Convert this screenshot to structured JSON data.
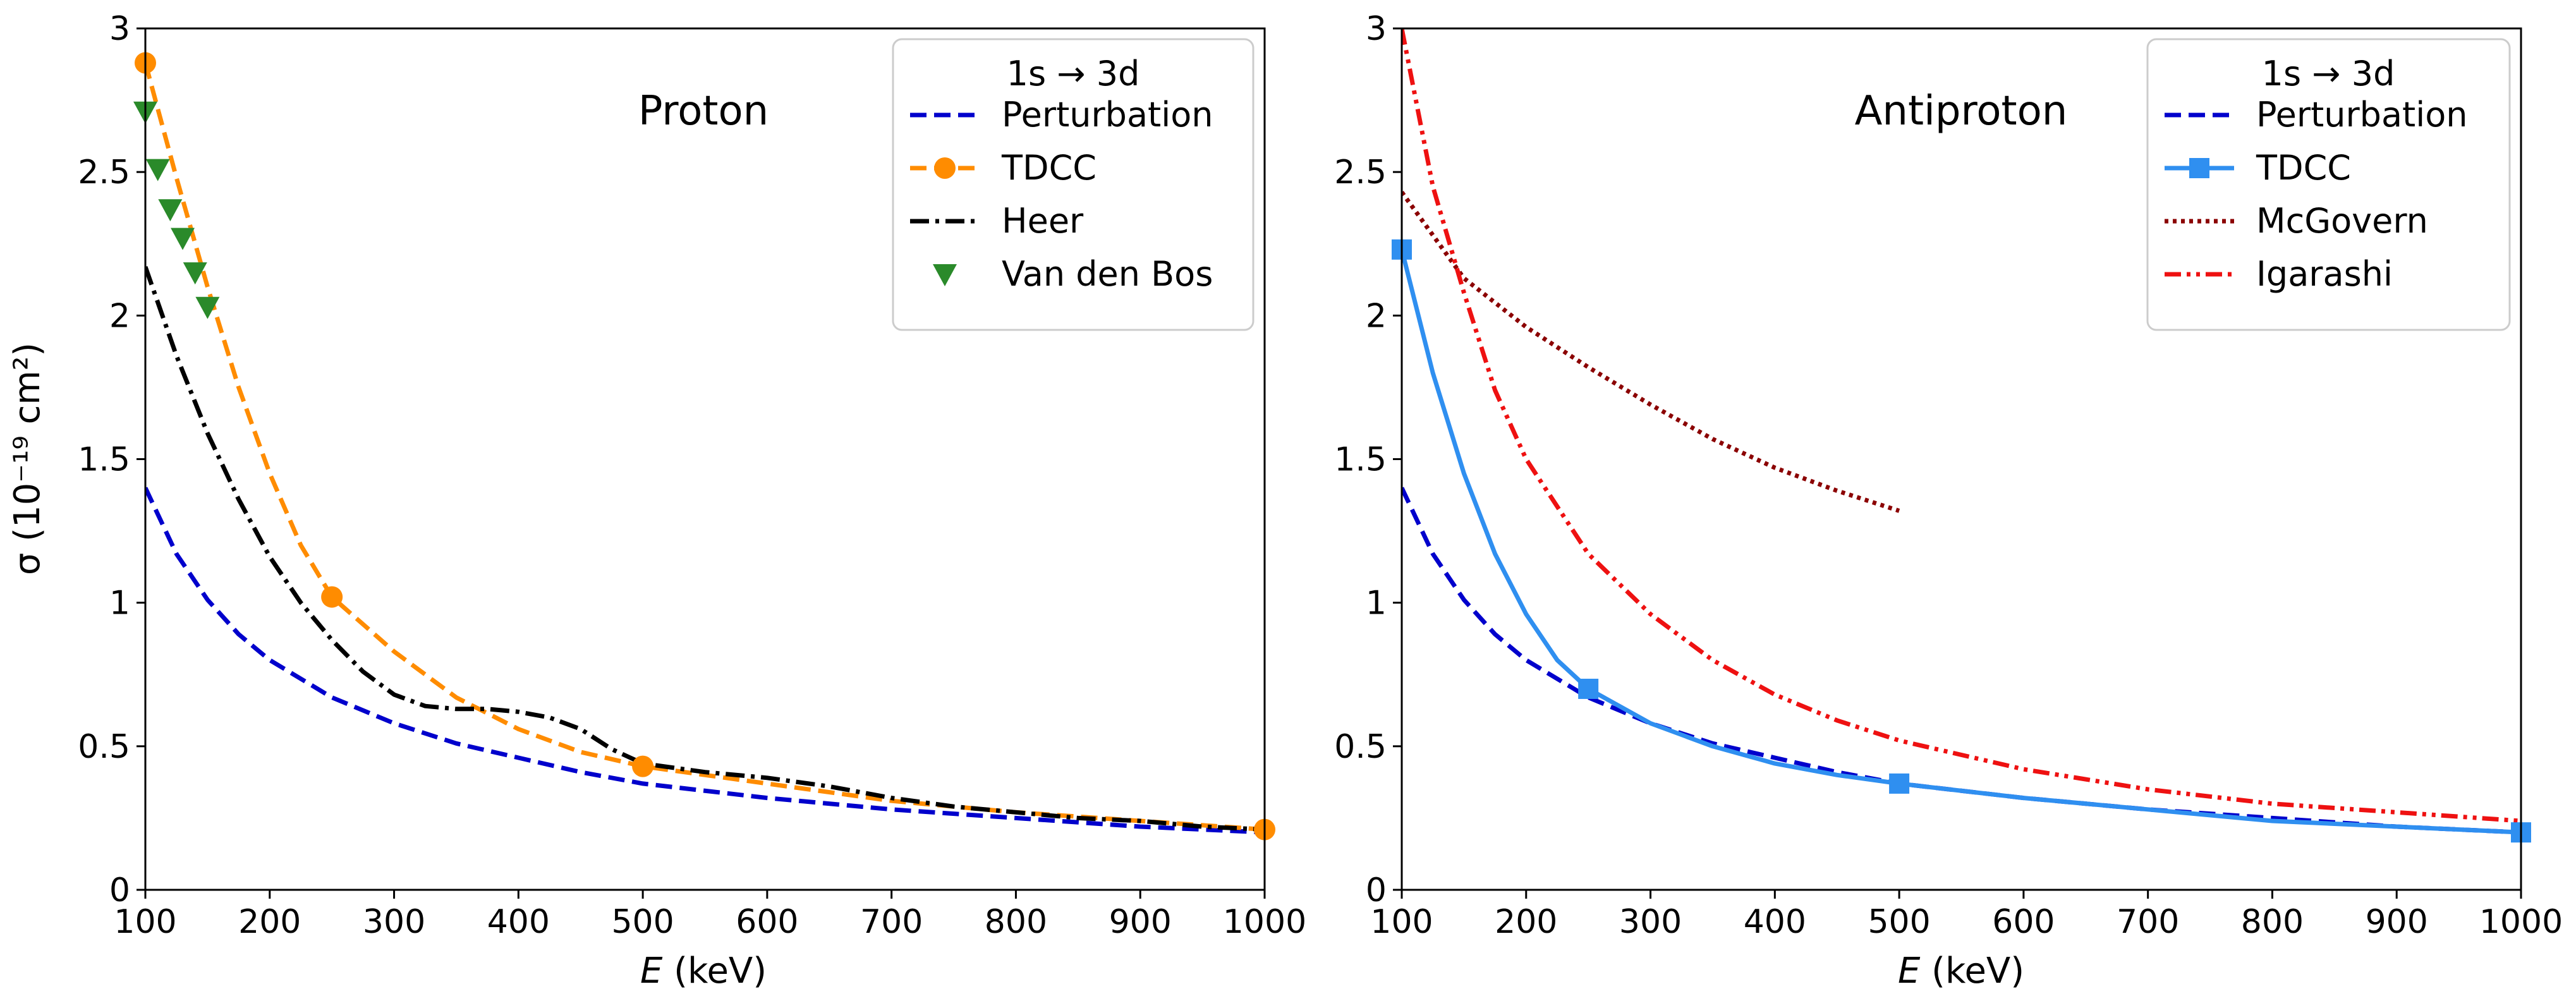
{
  "chart_data": [
    {
      "type": "line",
      "title": "Proton",
      "xlabel_symbol": "E",
      "xlabel_unit": "(keV)",
      "ylabel": "σ (10⁻¹⁹ cm²)",
      "xlim": [
        100,
        1000
      ],
      "ylim": [
        0,
        3
      ],
      "xticks": [
        100,
        200,
        300,
        400,
        500,
        600,
        700,
        800,
        900,
        1000
      ],
      "yticks": [
        0,
        0.5,
        1,
        1.5,
        2,
        2.5,
        3
      ],
      "ytick_labels": [
        "0",
        "0.5",
        "1",
        "1.5",
        "2",
        "2.5",
        "3"
      ],
      "legend_title": "1s → 3d",
      "legend_location": "top-right",
      "series": [
        {
          "name": "Perturbation",
          "color": "#0000cc",
          "dash": "dashed",
          "x": [
            100,
            125,
            150,
            175,
            200,
            250,
            300,
            350,
            400,
            450,
            500,
            600,
            700,
            800,
            900,
            1000
          ],
          "y": [
            1.4,
            1.17,
            1.01,
            0.89,
            0.8,
            0.67,
            0.58,
            0.51,
            0.46,
            0.41,
            0.37,
            0.32,
            0.28,
            0.25,
            0.22,
            0.2
          ]
        },
        {
          "name": "TDCC",
          "color": "#ff8c00",
          "dash": "dashed",
          "marker": "circle",
          "x": [
            100,
            250,
            500,
            1000
          ],
          "y": [
            2.88,
            1.02,
            0.43,
            0.21
          ],
          "curve_x": [
            100,
            125,
            150,
            175,
            200,
            225,
            250,
            300,
            350,
            400,
            450,
            500,
            600,
            700,
            800,
            900,
            1000
          ],
          "curve_y": [
            2.88,
            2.48,
            2.1,
            1.75,
            1.45,
            1.2,
            1.02,
            0.83,
            0.67,
            0.56,
            0.48,
            0.43,
            0.37,
            0.31,
            0.27,
            0.24,
            0.21
          ]
        },
        {
          "name": "Heer",
          "color": "#000000",
          "dash": "dashdot",
          "x": [
            100,
            125,
            150,
            175,
            200,
            225,
            250,
            275,
            300,
            325,
            350,
            375,
            400,
            425,
            450,
            475,
            500,
            550,
            600,
            650,
            700,
            750,
            800,
            850,
            900,
            950,
            1000
          ],
          "y": [
            2.17,
            1.86,
            1.59,
            1.36,
            1.16,
            1.0,
            0.87,
            0.76,
            0.68,
            0.64,
            0.63,
            0.63,
            0.62,
            0.6,
            0.56,
            0.49,
            0.44,
            0.41,
            0.39,
            0.36,
            0.32,
            0.29,
            0.27,
            0.25,
            0.24,
            0.22,
            0.21
          ]
        },
        {
          "name": "Van den Bos",
          "color": "#2a8a2a",
          "marker": "triangle-down",
          "x": [
            100,
            110,
            120,
            130,
            140,
            150
          ],
          "y": [
            2.71,
            2.51,
            2.37,
            2.27,
            2.15,
            2.03
          ]
        }
      ]
    },
    {
      "type": "line",
      "title": "Antiproton",
      "xlabel_symbol": "E",
      "xlabel_unit": "(keV)",
      "xlim": [
        100,
        1000
      ],
      "ylim": [
        0,
        3
      ],
      "xticks": [
        100,
        200,
        300,
        400,
        500,
        600,
        700,
        800,
        900,
        1000
      ],
      "yticks": [
        0,
        0.5,
        1,
        1.5,
        2,
        2.5,
        3
      ],
      "ytick_labels": [
        "0",
        "0.5",
        "1",
        "1.5",
        "2",
        "2.5",
        "3"
      ],
      "legend_title": "1s → 3d",
      "legend_location": "top-right",
      "series": [
        {
          "name": "Perturbation",
          "color": "#0000cc",
          "dash": "dashed",
          "x": [
            100,
            125,
            150,
            175,
            200,
            250,
            300,
            350,
            400,
            450,
            500,
            600,
            700,
            800,
            900,
            1000
          ],
          "y": [
            1.4,
            1.17,
            1.01,
            0.89,
            0.8,
            0.67,
            0.58,
            0.51,
            0.46,
            0.41,
            0.37,
            0.32,
            0.28,
            0.25,
            0.22,
            0.2
          ]
        },
        {
          "name": "TDCC",
          "color": "#2f8ff0",
          "dash": "solid",
          "marker": "square",
          "x": [
            100,
            250,
            500,
            1000
          ],
          "y": [
            2.23,
            0.7,
            0.37,
            0.2
          ],
          "curve_x": [
            100,
            125,
            150,
            175,
            200,
            225,
            250,
            300,
            350,
            400,
            450,
            500,
            600,
            700,
            800,
            900,
            1000
          ],
          "curve_y": [
            2.23,
            1.8,
            1.45,
            1.17,
            0.96,
            0.8,
            0.7,
            0.58,
            0.5,
            0.44,
            0.4,
            0.37,
            0.32,
            0.28,
            0.24,
            0.22,
            0.2
          ]
        },
        {
          "name": "McGovern",
          "color": "#8b0000",
          "dash": "dotted",
          "x": [
            100,
            150,
            200,
            250,
            300,
            350,
            400,
            450,
            500
          ],
          "y": [
            2.43,
            2.13,
            1.96,
            1.82,
            1.69,
            1.57,
            1.47,
            1.39,
            1.32
          ]
        },
        {
          "name": "Igarashi",
          "color": "#ee1111",
          "dash": "dashdotdot",
          "x": [
            100,
            125,
            150,
            175,
            200,
            250,
            300,
            350,
            400,
            450,
            500,
            600,
            700,
            800,
            900,
            1000
          ],
          "y": [
            3.0,
            2.45,
            2.08,
            1.74,
            1.5,
            1.17,
            0.96,
            0.8,
            0.68,
            0.59,
            0.52,
            0.42,
            0.35,
            0.3,
            0.27,
            0.24
          ]
        }
      ]
    }
  ]
}
